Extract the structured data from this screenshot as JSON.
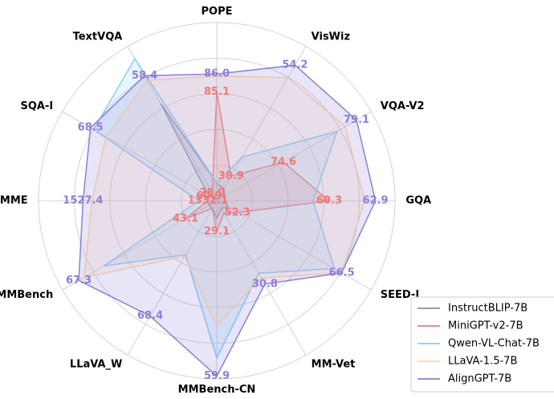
{
  "chart_data": {
    "type": "radar",
    "categories": [
      "POPE",
      "VisWiz",
      "VQA-V2",
      "GQA",
      "SEED-I",
      "MM-Vet",
      "MMBench-CN",
      "LLaVA_W",
      "MMBench",
      "MME",
      "SQA-I",
      "TextVQA"
    ],
    "rlim": [
      [
        79.6,
        88.6
      ],
      [
        35.5,
        56.8
      ],
      [
        70.5,
        80
      ],
      [
        54,
        64
      ],
      [
        49.5,
        70.5
      ],
      [
        20,
        40
      ],
      [
        22.5,
        60.5
      ],
      [
        40,
        78
      ],
      [
        36,
        71
      ],
      [
        1318,
        1597
      ],
      [
        60.4,
        70.3
      ],
      [
        26,
        66
      ]
    ],
    "legend": "lower right",
    "series": [
      {
        "name": "InstructBLIP-7B",
        "color": "#8b8ba3",
        "values": [
          80.5,
          37.2,
          71.0,
          54.5,
          51.0,
          21.0,
          26.3,
          41.9,
          37.8,
          1332,
          60.9,
          51.2
        ]
      },
      {
        "name": "MiniGPT-v2-7B",
        "color": "#f07878",
        "values": [
          85.1,
          38.9,
          74.6,
          60.3,
          52.3,
          21.6,
          29.1,
          41.9,
          43.1,
          1332.1,
          60.9,
          28.0
        ],
        "value_labels": [
          "85.1",
          "38.9",
          "74.6",
          "60.3",
          "52.3",
          null,
          "29.1",
          null,
          "43.1",
          "1332.1",
          "60.9",
          "28.0"
        ]
      },
      {
        "name": "Qwen-VL-Chat-7B",
        "color": "#87cefa",
        "values": [
          80.5,
          41.5,
          77.9,
          59.4,
          65.5,
          29.4,
          56.0,
          53.3,
          61.6,
          1346,
          68.3,
          62.8
        ]
      },
      {
        "name": "LLaVA-1.5-7B",
        "color": "#ffd9a8",
        "values": [
          85.9,
          52.5,
          78.4,
          62.3,
          66.5,
          30.0,
          49.1,
          53.7,
          66.1,
          1513,
          67.5,
          57.2
        ]
      },
      {
        "name": "AlignGPT-7B",
        "color": "#8c7fd6",
        "values": [
          86.0,
          54.2,
          79.1,
          62.9,
          66.5,
          30.8,
          59.9,
          68.4,
          67.3,
          1527.4,
          68.5,
          58.4
        ],
        "value_labels": [
          "86.0",
          "54.2",
          "79.1",
          "62.9",
          "66.5",
          "30.8",
          "59.9",
          "68.4",
          "67.3",
          "1527.4",
          "68.5",
          "58.4"
        ]
      }
    ]
  }
}
